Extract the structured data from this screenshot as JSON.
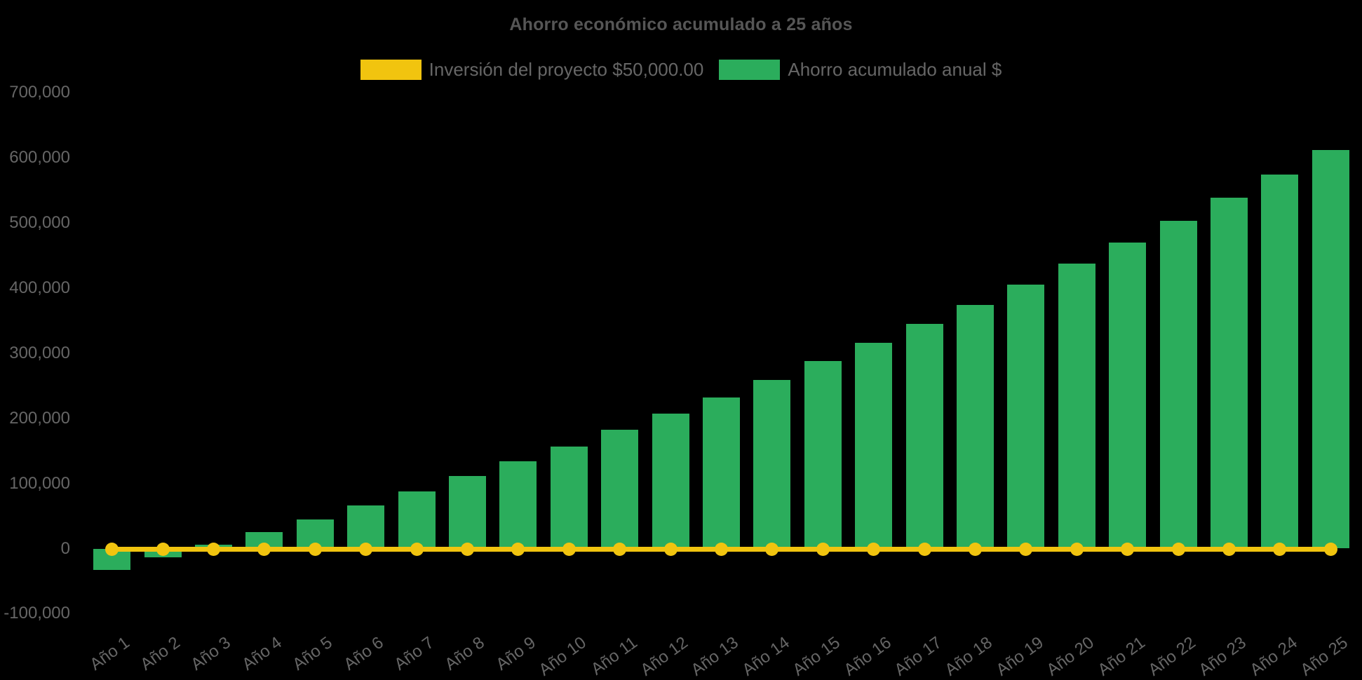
{
  "title": "Ahorro económico acumulado a 25 años",
  "colors": {
    "background": "#000000",
    "investment_yellow": "#F1C40F",
    "savings_green": "#2BAD5C",
    "title_text": "#565656",
    "axis_text": "#666666"
  },
  "legend": [
    {
      "label": "Inversión del proyecto $50,000.00",
      "color": "#F1C40F"
    },
    {
      "label": "Ahorro acumulado anual $",
      "color": "#2BAD5C"
    }
  ],
  "chart_data": {
    "type": "bar",
    "title": "Ahorro económico acumulado a 25 años",
    "categories": [
      "Año 1",
      "Año 2",
      "Año 3",
      "Año 4",
      "Año 5",
      "Año 6",
      "Año 7",
      "Año 8",
      "Año 9",
      "Año 10",
      "Año 11",
      "Año 12",
      "Año 13",
      "Año 14",
      "Año 15",
      "Año 16",
      "Año 17",
      "Año 18",
      "Año 19",
      "Año 20",
      "Año 21",
      "Año 22",
      "Año 23",
      "Año 24",
      "Año 25"
    ],
    "series": [
      {
        "name": "Inversión del proyecto $50,000.00",
        "type": "line",
        "color": "#F1C40F",
        "values": [
          0,
          0,
          0,
          0,
          0,
          0,
          0,
          0,
          0,
          0,
          0,
          0,
          0,
          0,
          0,
          0,
          0,
          0,
          0,
          0,
          0,
          0,
          0,
          0,
          0
        ]
      },
      {
        "name": "Ahorro acumulado anual $",
        "type": "bar",
        "color": "#2BAD5C",
        "values": [
          -33000,
          -13000,
          6000,
          25000,
          45000,
          66000,
          88000,
          111000,
          134000,
          157000,
          182000,
          207000,
          232000,
          259000,
          288000,
          316000,
          345000,
          374000,
          405000,
          437000,
          470000,
          503000,
          539000,
          574000,
          612000
        ]
      }
    ],
    "xlabel": "",
    "ylabel": "",
    "ylim": [
      -100000,
      700000
    ],
    "y_ticks": [
      700000,
      600000,
      500000,
      400000,
      300000,
      200000,
      100000,
      0,
      -100000
    ],
    "y_tick_labels": [
      "700,000",
      "600,000",
      "500,000",
      "400,000",
      "300,000",
      "200,000",
      "100,000",
      "0",
      "-100,000"
    ],
    "grid": false,
    "legend_position": "top"
  }
}
